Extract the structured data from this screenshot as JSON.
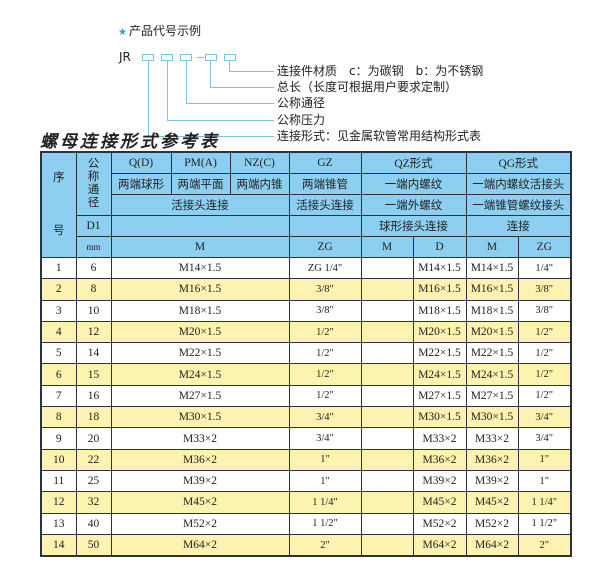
{
  "diagram": {
    "title": "产品代号示例",
    "code_prefix": "JR",
    "labels": [
      "连接件材质　c：为碳钢　b：为不锈钢",
      "总长（长度可根据用户要求定制）",
      "公称通径",
      "公称压力",
      "连接形式：见金属软管常用结构形式表"
    ]
  },
  "section_title": "螺母连接形式参考表",
  "colors": {
    "header_bg": "#8ccff0",
    "alt_row_bg": "#fdf3b0",
    "accent": "#2a9fd6"
  },
  "table": {
    "header": {
      "seq": "序号",
      "seq_top": "序",
      "seq_bottom": "号",
      "nominal_diameter": "公称通径",
      "types": [
        "Q(D)",
        "PM(A)",
        "NZ(C)",
        "GZ",
        "QZ形式",
        "QG形式"
      ],
      "row2": [
        "两端球形",
        "两端平面",
        "两端内锥",
        "两端锥管",
        "一端内螺纹",
        "一端内螺纹活接头"
      ],
      "row3": [
        "活接头连接",
        "活接头连接",
        "一端外螺纹",
        "一端锥管螺纹接头"
      ],
      "row4": {
        "d1": "D1",
        "qz": "球形接头连接",
        "qg": "连接"
      },
      "row5": [
        "mm",
        "M",
        "ZG",
        "M",
        "D",
        "M",
        "ZG"
      ]
    },
    "rows": [
      {
        "no": "1",
        "dn": "6",
        "m": "M14×1.5",
        "zg": "ZG 1/4\"",
        "qz_m": "",
        "qz_d": "M14×1.5",
        "qg_m": "M14×1.5",
        "qg_zg": "1/4\""
      },
      {
        "no": "2",
        "dn": "8",
        "m": "M16×1.5",
        "zg": "3/8\"",
        "qz_m": "",
        "qz_d": "M16×1.5",
        "qg_m": "M16×1.5",
        "qg_zg": "3/8\""
      },
      {
        "no": "3",
        "dn": "10",
        "m": "M18×1.5",
        "zg": "3/8\"",
        "qz_m": "",
        "qz_d": "M18×1.5",
        "qg_m": "M18×1.5",
        "qg_zg": "3/8\""
      },
      {
        "no": "4",
        "dn": "12",
        "m": "M20×1.5",
        "zg": "1/2\"",
        "qz_m": "",
        "qz_d": "M20×1.5",
        "qg_m": "M20×1.5",
        "qg_zg": "1/2\""
      },
      {
        "no": "5",
        "dn": "14",
        "m": "M22×1.5",
        "zg": "1/2\"",
        "qz_m": "",
        "qz_d": "M22×1.5",
        "qg_m": "M22×1.5",
        "qg_zg": "1/2\""
      },
      {
        "no": "6",
        "dn": "15",
        "m": "M24×1.5",
        "zg": "1/2\"",
        "qz_m": "",
        "qz_d": "M24×1.5",
        "qg_m": "M24×1.5",
        "qg_zg": "1/2\""
      },
      {
        "no": "7",
        "dn": "16",
        "m": "M27×1.5",
        "zg": "1/2\"",
        "qz_m": "",
        "qz_d": "M27×1.5",
        "qg_m": "M27×1.5",
        "qg_zg": "1/2\""
      },
      {
        "no": "8",
        "dn": "18",
        "m": "M30×1.5",
        "zg": "3/4\"",
        "qz_m": "",
        "qz_d": "M30×1.5",
        "qg_m": "M30×1.5",
        "qg_zg": "3/4\""
      },
      {
        "no": "9",
        "dn": "20",
        "m": "M33×2",
        "zg": "3/4\"",
        "qz_m": "",
        "qz_d": "M33×2",
        "qg_m": "M33×2",
        "qg_zg": "3/4\""
      },
      {
        "no": "10",
        "dn": "22",
        "m": "M36×2",
        "zg": "1\"",
        "qz_m": "",
        "qz_d": "M36×2",
        "qg_m": "M36×2",
        "qg_zg": "1\""
      },
      {
        "no": "11",
        "dn": "25",
        "m": "M39×2",
        "zg": "1\"",
        "qz_m": "",
        "qz_d": "M39×2",
        "qg_m": "M39×2",
        "qg_zg": "1\""
      },
      {
        "no": "12",
        "dn": "32",
        "m": "M45×2",
        "zg": "1 1/4\"",
        "qz_m": "",
        "qz_d": "M45×2",
        "qg_m": "M45×2",
        "qg_zg": "1 1/4\""
      },
      {
        "no": "13",
        "dn": "40",
        "m": "M52×2",
        "zg": "1 1/2\"",
        "qz_m": "",
        "qz_d": "M52×2",
        "qg_m": "M52×2",
        "qg_zg": "1 1/2\""
      },
      {
        "no": "14",
        "dn": "50",
        "m": "M64×2",
        "zg": "2\"",
        "qz_m": "",
        "qz_d": "M64×2",
        "qg_m": "M64×2",
        "qg_zg": "2\""
      }
    ]
  }
}
